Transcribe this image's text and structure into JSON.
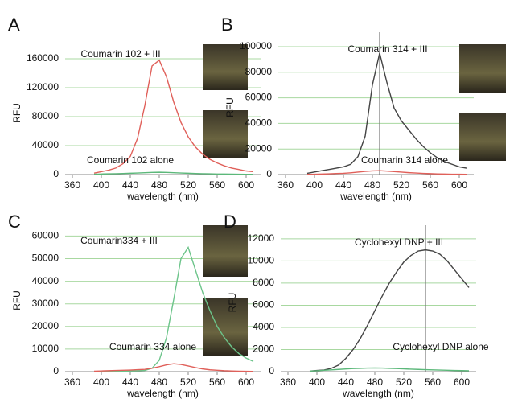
{
  "chart_data": [
    {
      "type": "line",
      "label": "A",
      "ylabel": "RFU",
      "xlabel": "wavelength (nm)",
      "x": [
        390,
        400,
        410,
        420,
        430,
        440,
        450,
        460,
        470,
        480,
        490,
        500,
        510,
        520,
        530,
        540,
        550,
        560,
        570,
        580,
        590,
        600,
        610
      ],
      "series": [
        {
          "name": "Coumarin 102 + III",
          "color": "#e0605a",
          "values": [
            2000,
            4000,
            6000,
            9000,
            15000,
            25000,
            50000,
            95000,
            150000,
            158000,
            135000,
            100000,
            72000,
            52000,
            38000,
            28000,
            21000,
            16000,
            12000,
            9000,
            7000,
            5000,
            4000
          ]
        },
        {
          "name": "Coumarin 102 alone",
          "color": "#5cb87a",
          "values": [
            500,
            800,
            1000,
            1200,
            1500,
            1800,
            2200,
            2600,
            3000,
            3200,
            3000,
            2600,
            2200,
            1800,
            1500,
            1200,
            1000,
            800,
            700,
            600,
            500,
            400,
            400
          ]
        }
      ],
      "xlim": [
        350,
        620
      ],
      "ylim": [
        0,
        170000
      ],
      "xticks": [
        360,
        400,
        440,
        480,
        520,
        560,
        600
      ],
      "yticks": [
        0,
        40000,
        80000,
        120000,
        160000
      ],
      "grid": true
    },
    {
      "type": "line",
      "label": "B",
      "ylabel": "RFU",
      "xlabel": "wavelength (nm)",
      "x": [
        390,
        400,
        410,
        420,
        430,
        440,
        450,
        460,
        470,
        480,
        490,
        500,
        510,
        520,
        530,
        540,
        550,
        560,
        570,
        580,
        590,
        600,
        610
      ],
      "series": [
        {
          "name": "Coumarin 314 + III",
          "color": "#444444",
          "values": [
            1000,
            2000,
            3000,
            4000,
            5000,
            6000,
            8000,
            14000,
            30000,
            70000,
            95000,
            72000,
            52000,
            42000,
            35000,
            28000,
            22000,
            17000,
            13000,
            10000,
            8000,
            6000,
            5000
          ]
        },
        {
          "name": "Coumarin 314 alone",
          "color": "#e0605a",
          "values": [
            200,
            300,
            400,
            600,
            800,
            1000,
            1400,
            1900,
            2500,
            2900,
            3000,
            2700,
            2300,
            1900,
            1500,
            1200,
            900,
            700,
            500,
            400,
            300,
            250,
            200
          ]
        }
      ],
      "xlim": [
        350,
        620
      ],
      "ylim": [
        0,
        105000
      ],
      "xticks": [
        360,
        400,
        440,
        480,
        520,
        560,
        600
      ],
      "yticks": [
        0,
        20000,
        40000,
        60000,
        80000,
        100000
      ],
      "grid": true,
      "vline": 490
    },
    {
      "type": "line",
      "label": "C",
      "ylabel": "RFU",
      "xlabel": "wavelength (nm)",
      "x": [
        390,
        400,
        410,
        420,
        430,
        440,
        450,
        460,
        470,
        480,
        490,
        500,
        510,
        520,
        530,
        540,
        550,
        560,
        570,
        580,
        590,
        600,
        610
      ],
      "series": [
        {
          "name": "Coumarin334 + III",
          "color": "#6cc48a",
          "values": [
            0,
            0,
            0,
            100,
            200,
            300,
            400,
            500,
            1500,
            5000,
            15000,
            32000,
            50000,
            55000,
            45000,
            35000,
            27000,
            20000,
            15000,
            11000,
            8000,
            6000,
            4500
          ]
        },
        {
          "name": "Coumarin 334 alone",
          "color": "#e0605a",
          "values": [
            200,
            300,
            400,
            500,
            600,
            700,
            850,
            1000,
            1500,
            2200,
            3000,
            3500,
            3200,
            2500,
            1800,
            1200,
            800,
            600,
            400,
            300,
            200,
            150,
            100
          ]
        }
      ],
      "xlim": [
        350,
        620
      ],
      "ylim": [
        0,
        63000
      ],
      "xticks": [
        360,
        400,
        440,
        480,
        520,
        560,
        600
      ],
      "yticks": [
        0,
        10000,
        20000,
        30000,
        40000,
        50000,
        60000
      ],
      "grid": true
    },
    {
      "type": "line",
      "label": "D",
      "ylabel": "RFU",
      "xlabel": "wavelength (nm)",
      "x": [
        390,
        400,
        410,
        420,
        430,
        440,
        450,
        460,
        470,
        480,
        490,
        500,
        510,
        520,
        530,
        540,
        550,
        560,
        570,
        580,
        590,
        600,
        610
      ],
      "series": [
        {
          "name": "Cyclohexyl DNP + III",
          "color": "#444444",
          "values": [
            50,
            100,
            150,
            300,
            600,
            1200,
            2000,
            3000,
            4200,
            5500,
            6800,
            8000,
            9000,
            9900,
            10500,
            10900,
            11000,
            10900,
            10600,
            10000,
            9200,
            8400,
            7600
          ]
        },
        {
          "name": "Cyclohexyl DNP alone",
          "color": "#5cb87a",
          "values": [
            50,
            80,
            120,
            160,
            200,
            240,
            280,
            300,
            320,
            330,
            320,
            300,
            280,
            250,
            220,
            200,
            180,
            160,
            140,
            120,
            100,
            90,
            80
          ]
        }
      ],
      "xlim": [
        350,
        620
      ],
      "ylim": [
        0,
        12500
      ],
      "xticks": [
        360,
        400,
        440,
        480,
        520,
        560,
        600
      ],
      "yticks": [
        0,
        2000,
        4000,
        6000,
        8000,
        10000,
        12000
      ],
      "grid": true,
      "vline": 550
    }
  ]
}
